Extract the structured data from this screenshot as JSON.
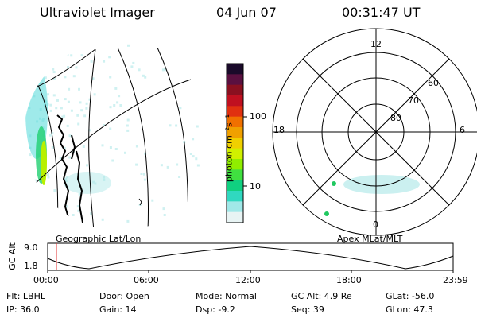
{
  "header": {
    "title": "Ultraviolet Imager",
    "date": "04 Jun 07",
    "time": "00:31:47 UT"
  },
  "geo_panel": {
    "label": "Geographic Lat/Lon"
  },
  "apex_panel": {
    "label": "Apex MLat/MLT",
    "mlt_labels": {
      "top": "12",
      "left": "18",
      "right": "6",
      "bottom": "0"
    },
    "lat_labels": [
      "60",
      "70",
      "80"
    ]
  },
  "colorbar": {
    "unit_label": "photon cm⁻²s⁻¹",
    "ticks": [
      "100",
      "10"
    ],
    "colors": [
      "#1a0a2a",
      "#5a1040",
      "#8a1020",
      "#c01020",
      "#e03010",
      "#f07000",
      "#f0a000",
      "#f0d000",
      "#d0f000",
      "#90ee00",
      "#40e040",
      "#10d080",
      "#30d8c0",
      "#a0e8e8",
      "#e8f4f4"
    ]
  },
  "altitude_plot": {
    "axis_label": "GC Alt",
    "y_ticks": [
      "9.0",
      "1.8"
    ],
    "x_ticks": [
      "00:00",
      "06:00",
      "12:00",
      "18:00",
      "23:59"
    ]
  },
  "info": {
    "filter": "Flt: LBHL",
    "ip": "IP: 36.0",
    "door": "Door: Open",
    "gain": "Gain: 14",
    "mode": "Mode: Normal",
    "dsp": "Dsp:   -9.2",
    "gc_alt": "GC Alt: 4.9 Re",
    "seq": "Seq: 39",
    "glat": "GLat: -56.0",
    "glon": "GLon:  47.3"
  }
}
